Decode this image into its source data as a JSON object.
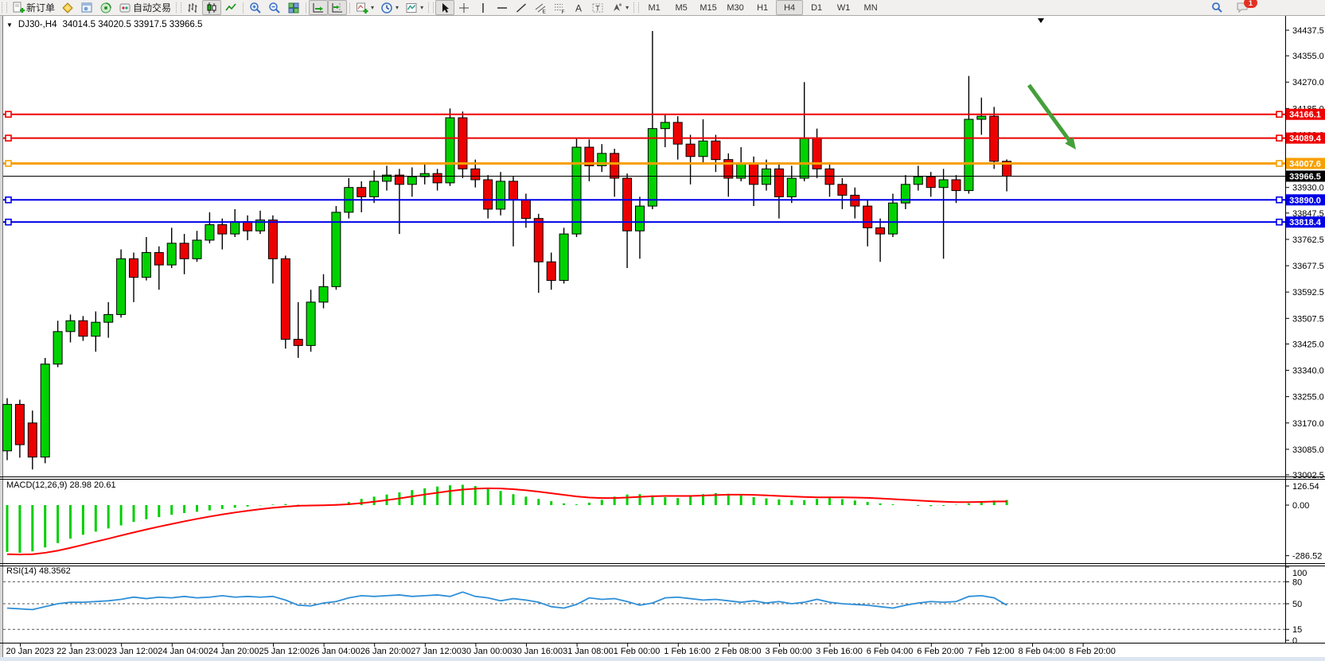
{
  "toolbar": {
    "new_order_label": "新订单",
    "autotrade_label": "自动交易",
    "notification_badge": "1",
    "timeframes": [
      "M1",
      "M5",
      "M15",
      "M30",
      "H1",
      "H4",
      "D1",
      "W1",
      "MN"
    ],
    "active_timeframe": "H4",
    "icon_groups": [
      {
        "grip": true,
        "items": [
          {
            "icon": "new-order",
            "label": "新订单"
          },
          {
            "icon": "market-watch"
          },
          {
            "icon": "data-window"
          },
          {
            "icon": "navigator"
          },
          {
            "icon": "autotrade",
            "label": "自动交易"
          }
        ]
      },
      {
        "grip": true,
        "items": [
          {
            "icon": "chart-bars"
          },
          {
            "icon": "chart-candles",
            "pressed": true
          },
          {
            "icon": "chart-line"
          }
        ]
      },
      {
        "grip": false,
        "items": [
          {
            "icon": "zoom-in"
          },
          {
            "icon": "zoom-out"
          },
          {
            "icon": "tile-windows"
          }
        ]
      },
      {
        "grip": false,
        "items": [
          {
            "icon": "auto-scroll",
            "pressed": true
          },
          {
            "icon": "chart-shift",
            "pressed": true
          }
        ]
      },
      {
        "grip": false,
        "items": [
          {
            "icon": "indicators-add",
            "dropdown": true
          },
          {
            "icon": "periods-clock",
            "dropdown": true
          },
          {
            "icon": "templates",
            "dropdown": true
          }
        ]
      },
      {
        "grip": true,
        "items": [
          {
            "icon": "cursor",
            "pressed": true
          },
          {
            "icon": "crosshair"
          },
          {
            "icon": "vertical-line"
          },
          {
            "icon": "horizontal-line"
          },
          {
            "icon": "trend-line"
          },
          {
            "icon": "equidistant-channel"
          },
          {
            "icon": "fibonacci"
          },
          {
            "icon": "text"
          },
          {
            "icon": "text-label"
          },
          {
            "icon": "arrows",
            "dropdown": true
          }
        ]
      }
    ]
  },
  "chart": {
    "symbol_period": "DJ30-,H4",
    "ohlc_text": "34014.5 34020.5 33917.5 33966.5",
    "open": "34014.5",
    "high": "34020.5",
    "low": "33917.5",
    "close": "33966.5"
  },
  "indicators": {
    "macd_label": "MACD(12,26,9) 28.98 20.61",
    "rsi_label": "RSI(14) 48.3562"
  },
  "chart_data": {
    "type": "candlestick",
    "symbol": "DJ30-",
    "period": "H4",
    "price_axis_ticks": [
      "34437.5",
      "34355.0",
      "34270.0",
      "34185.0",
      "34100.0",
      "34015.0",
      "33930.0",
      "33847.5",
      "33762.5",
      "33677.5",
      "33592.5",
      "33507.5",
      "33425.0",
      "33340.0",
      "33255.0",
      "33170.0",
      "33085.0",
      "33002.5"
    ],
    "price_axis_range": {
      "top": 34460.0,
      "bottom": 33002.5
    },
    "current_price": "33966.5",
    "price_levels": [
      {
        "value": "34166.1",
        "price": 34166.1,
        "color": "#ee0000",
        "width": 2
      },
      {
        "value": "34089.4",
        "price": 34089.4,
        "color": "#ee0000",
        "width": 2
      },
      {
        "value": "34007.6",
        "price": 34007.6,
        "color": "#f8a000",
        "width": 3
      },
      {
        "value": "33890.0",
        "price": 33890.0,
        "color": "#0000e8",
        "width": 2
      },
      {
        "value": "33818.4",
        "price": 33818.4,
        "color": "#0000e8",
        "width": 2
      }
    ],
    "candles": [
      [
        33080,
        33250,
        33050,
        33230
      ],
      [
        33230,
        33245,
        33058,
        33100
      ],
      [
        33170,
        33210,
        33020,
        33060
      ],
      [
        33060,
        33380,
        33040,
        33360
      ],
      [
        33360,
        33500,
        33350,
        33465
      ],
      [
        33465,
        33520,
        33430,
        33500
      ],
      [
        33500,
        33515,
        33435,
        33450
      ],
      [
        33450,
        33530,
        33400,
        33495
      ],
      [
        33495,
        33560,
        33445,
        33520
      ],
      [
        33520,
        33730,
        33510,
        33700
      ],
      [
        33700,
        33720,
        33560,
        33640
      ],
      [
        33640,
        33770,
        33630,
        33720
      ],
      [
        33720,
        33740,
        33600,
        33680
      ],
      [
        33680,
        33800,
        33670,
        33750
      ],
      [
        33750,
        33780,
        33650,
        33700
      ],
      [
        33700,
        33790,
        33690,
        33760
      ],
      [
        33760,
        33850,
        33750,
        33810
      ],
      [
        33810,
        33830,
        33730,
        33780
      ],
      [
        33780,
        33860,
        33770,
        33820
      ],
      [
        33820,
        33840,
        33760,
        33790
      ],
      [
        33790,
        33855,
        33780,
        33825
      ],
      [
        33825,
        33840,
        33620,
        33700
      ],
      [
        33700,
        33710,
        33410,
        33440
      ],
      [
        33440,
        33560,
        33380,
        33420
      ],
      [
        33420,
        33600,
        33400,
        33560
      ],
      [
        33560,
        33650,
        33540,
        33610
      ],
      [
        33610,
        33870,
        33600,
        33850
      ],
      [
        33850,
        33960,
        33830,
        33930
      ],
      [
        33930,
        33950,
        33850,
        33900
      ],
      [
        33900,
        33985,
        33880,
        33950
      ],
      [
        33950,
        34000,
        33920,
        33970
      ],
      [
        33970,
        33990,
        33780,
        33940
      ],
      [
        33940,
        33995,
        33900,
        33965
      ],
      [
        33965,
        34010,
        33940,
        33975
      ],
      [
        33975,
        33990,
        33920,
        33945
      ],
      [
        33945,
        34185,
        33935,
        34155
      ],
      [
        34155,
        34175,
        33960,
        33990
      ],
      [
        33990,
        34020,
        33930,
        33955
      ],
      [
        33955,
        33970,
        33830,
        33860
      ],
      [
        33860,
        33980,
        33840,
        33950
      ],
      [
        33950,
        33965,
        33740,
        33890
      ],
      [
        33890,
        33910,
        33800,
        33830
      ],
      [
        33830,
        33845,
        33590,
        33690
      ],
      [
        33690,
        33720,
        33600,
        33630
      ],
      [
        33630,
        33800,
        33620,
        33780
      ],
      [
        33780,
        34090,
        33770,
        34060
      ],
      [
        34060,
        34085,
        33950,
        34000
      ],
      [
        34000,
        34070,
        33980,
        34040
      ],
      [
        34040,
        34055,
        33900,
        33960
      ],
      [
        33960,
        33975,
        33670,
        33790
      ],
      [
        33790,
        33900,
        33700,
        33870
      ],
      [
        33870,
        34435,
        33860,
        34120
      ],
      [
        34120,
        34165,
        34060,
        34140
      ],
      [
        34140,
        34160,
        34020,
        34070
      ],
      [
        34070,
        34100,
        33940,
        34030
      ],
      [
        34030,
        34150,
        34010,
        34080
      ],
      [
        34080,
        34100,
        33980,
        34020
      ],
      [
        34020,
        34040,
        33900,
        33960
      ],
      [
        33960,
        34060,
        33950,
        34010
      ],
      [
        34010,
        34030,
        33870,
        33940
      ],
      [
        33940,
        34020,
        33920,
        33990
      ],
      [
        33990,
        34005,
        33830,
        33900
      ],
      [
        33900,
        34000,
        33880,
        33960
      ],
      [
        33960,
        34270,
        33950,
        34090
      ],
      [
        34090,
        34120,
        33960,
        33990
      ],
      [
        33990,
        34010,
        33900,
        33940
      ],
      [
        33940,
        33960,
        33860,
        33905
      ],
      [
        33905,
        33930,
        33830,
        33870
      ],
      [
        33870,
        33890,
        33740,
        33800
      ],
      [
        33800,
        33830,
        33690,
        33780
      ],
      [
        33780,
        33910,
        33770,
        33880
      ],
      [
        33880,
        33970,
        33860,
        33940
      ],
      [
        33940,
        34000,
        33920,
        33965
      ],
      [
        33965,
        33980,
        33900,
        33930
      ],
      [
        33930,
        33990,
        33700,
        33955
      ],
      [
        33955,
        33970,
        33880,
        33920
      ],
      [
        33920,
        34290,
        33910,
        34150
      ],
      [
        34150,
        34220,
        34100,
        34160
      ],
      [
        34160,
        34190,
        33990,
        34014.5
      ],
      [
        34014.5,
        34020.5,
        33917.5,
        33966.5
      ]
    ],
    "macd": {
      "label": "MACD(12,26,9) 28.98 20.61",
      "axis_labels": [
        "126.54",
        "0.00",
        "-286.52"
      ],
      "axis_range": {
        "top": 126.54,
        "bottom": -286.52
      },
      "histogram": [
        -265,
        -270,
        -262,
        -240,
        -215,
        -190,
        -168,
        -150,
        -132,
        -115,
        -95,
        -80,
        -68,
        -55,
        -45,
        -38,
        -30,
        -22,
        -15,
        -8,
        -2,
        3,
        6,
        2,
        -4,
        -2,
        6,
        18,
        35,
        48,
        60,
        72,
        85,
        95,
        105,
        112,
        115,
        108,
        95,
        80,
        62,
        48,
        35,
        22,
        10,
        4,
        14,
        30,
        48,
        60,
        62,
        55,
        45,
        40,
        50,
        62,
        68,
        64,
        55,
        45,
        38,
        32,
        28,
        28,
        35,
        40,
        34,
        26,
        18,
        10,
        4,
        0,
        -4,
        -6,
        -4,
        2,
        10,
        20,
        26,
        29
      ],
      "signal": [
        -278,
        -280,
        -278,
        -270,
        -258,
        -242,
        -225,
        -207,
        -190,
        -172,
        -155,
        -138,
        -122,
        -107,
        -92,
        -78,
        -65,
        -53,
        -42,
        -32,
        -23,
        -15,
        -9,
        -4,
        -2,
        -1,
        1,
        5,
        11,
        19,
        28,
        38,
        49,
        60,
        70,
        80,
        88,
        93,
        95,
        94,
        90,
        84,
        76,
        67,
        58,
        49,
        43,
        40,
        40,
        43,
        47,
        50,
        52,
        52,
        52,
        54,
        57,
        59,
        59,
        58,
        55,
        52,
        49,
        46,
        44,
        44,
        44,
        43,
        41,
        38,
        34,
        30,
        26,
        22,
        19,
        17,
        17,
        18,
        20,
        21
      ]
    },
    "rsi": {
      "label": "RSI(14) 48.3562",
      "axis_labels": [
        "100",
        "80",
        "50",
        "15",
        "0"
      ],
      "levels": [
        80,
        50,
        15
      ],
      "values": [
        44,
        43,
        42,
        46,
        50,
        52,
        52,
        53,
        54,
        56,
        59,
        57,
        59,
        58,
        60,
        58,
        59,
        61,
        59,
        60,
        59,
        60,
        55,
        48,
        47,
        51,
        53,
        58,
        61,
        60,
        61,
        62,
        60,
        61,
        62,
        60,
        66,
        60,
        58,
        54,
        57,
        55,
        52,
        46,
        44,
        49,
        58,
        56,
        57,
        53,
        48,
        51,
        58,
        59,
        57,
        55,
        56,
        54,
        52,
        54,
        51,
        53,
        50,
        52,
        56,
        52,
        50,
        49,
        48,
        46,
        44,
        48,
        51,
        53,
        52,
        53,
        60,
        61,
        58,
        48
      ]
    },
    "time_labels": [
      "20 Jan 2023",
      "22 Jan 23:00",
      "23 Jan 12:00",
      "24 Jan 04:00",
      "24 Jan 20:00",
      "25 Jan 12:00",
      "26 Jan 04:00",
      "26 Jan 20:00",
      "27 Jan 12:00",
      "30 Jan 00:00",
      "30 Jan 16:00",
      "31 Jan 08:00",
      "1 Feb 00:00",
      "1 Feb 16:00",
      "2 Feb 08:00",
      "3 Feb 00:00",
      "3 Feb 16:00",
      "6 Feb 04:00",
      "6 Feb 20:00",
      "7 Feb 12:00",
      "8 Feb 04:00",
      "8 Feb 20:00"
    ],
    "annotation_arrow": {
      "direction": "down-right",
      "color": "#44A03A"
    },
    "colors": {
      "bull": "#00d200",
      "bear": "#ed0000",
      "outline": "#000000",
      "macd_histogram": "#00cf00",
      "macd_signal": "#ff0000",
      "rsi_line": "#2e8fd8",
      "axis_text": "#000000",
      "tag_current_bg": "#000000",
      "tag_text": "#ffffff"
    }
  }
}
